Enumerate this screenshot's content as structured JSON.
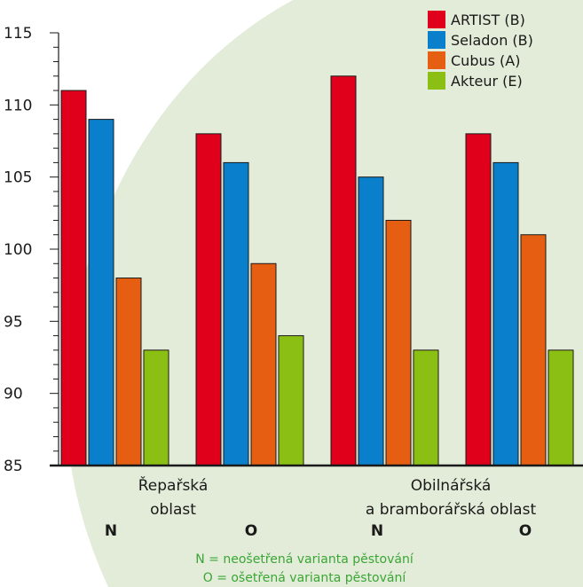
{
  "colors": {
    "background_blob": "#e3ecd9",
    "axis": "#1a1a1a"
  },
  "chart_data": {
    "type": "bar",
    "ylim": [
      85,
      115
    ],
    "yticks": [
      "85",
      "90",
      "95",
      "100",
      "105",
      "110",
      "115"
    ],
    "groups": [
      {
        "variant": "N",
        "values": [
          111,
          109,
          98,
          93
        ]
      },
      {
        "variant": "O",
        "values": [
          108,
          106,
          99,
          94
        ]
      },
      {
        "variant": "N",
        "values": [
          112,
          105,
          102,
          93
        ]
      },
      {
        "variant": "O",
        "values": [
          108,
          106,
          101,
          93
        ]
      }
    ],
    "series": [
      {
        "name": "ARTIST (B)",
        "color": "#e0001b"
      },
      {
        "name": "Seladon (B)",
        "color": "#0a7fcb"
      },
      {
        "name": "Cubus (A)",
        "color": "#e55e12"
      },
      {
        "name": "Akteur (E)",
        "color": "#8cbf14"
      }
    ],
    "regions": [
      {
        "lines": [
          "Řepařská",
          "oblast"
        ]
      },
      {
        "lines": [
          "Obilnářská",
          "a bramborářská oblast"
        ]
      }
    ],
    "notes": [
      "N = neošetřená varianta pěstování",
      "O = ošetřená varianta pěstování"
    ],
    "legend_position": "top-right",
    "grid": false
  }
}
